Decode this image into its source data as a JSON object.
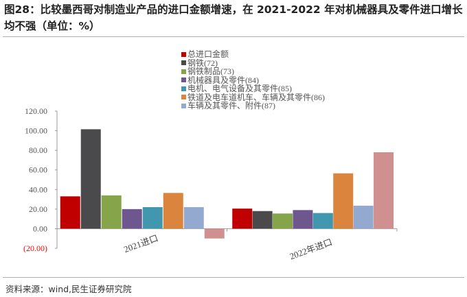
{
  "title": "图28：比较墨西哥对制造业产品的进口金额增速，在 2021-2022 年对机械器具及零件进口增长均不强（单位：%）",
  "source": "资料来源：wind,民生证券研究院",
  "chart_data": {
    "type": "bar",
    "categories": [
      "2021进口",
      "2022年进口"
    ],
    "ylim": [
      -20,
      120
    ],
    "yticks": [
      120,
      100,
      80,
      60,
      40,
      20,
      0,
      -20
    ],
    "ytick_labels": [
      "120.00",
      "100.00",
      "80.00",
      "60.00",
      "40.00",
      "20.00",
      "0.00",
      "(20.00)"
    ],
    "negative_label_color": "#ff0000",
    "legend_position": "top",
    "series": [
      {
        "name": "总进口金额",
        "color": "#c00000",
        "values": [
          33,
          20.5
        ]
      },
      {
        "name": "钢铁(72)",
        "color": "#4a4a4c",
        "values": [
          101.5,
          18
        ]
      },
      {
        "name": "钢铁制品(73)",
        "color": "#86a44a",
        "values": [
          34,
          15.5
        ]
      },
      {
        "name": "机械器具及零件(84)",
        "color": "#6e568f",
        "values": [
          20,
          19
        ]
      },
      {
        "name": "电机、电气设备及其零件(85)",
        "color": "#4198ae",
        "values": [
          22,
          16
        ]
      },
      {
        "name": "铁道及电车道机车、车辆及其零件(86)",
        "color": "#db843d",
        "values": [
          36.5,
          56.5
        ]
      },
      {
        "name": "车辆及其零件、附件(87)",
        "color": "#93a9cf",
        "values": [
          22,
          23.5
        ]
      },
      {
        "name": "",
        "color": "#d09090",
        "values": [
          -10,
          78
        ]
      }
    ]
  }
}
